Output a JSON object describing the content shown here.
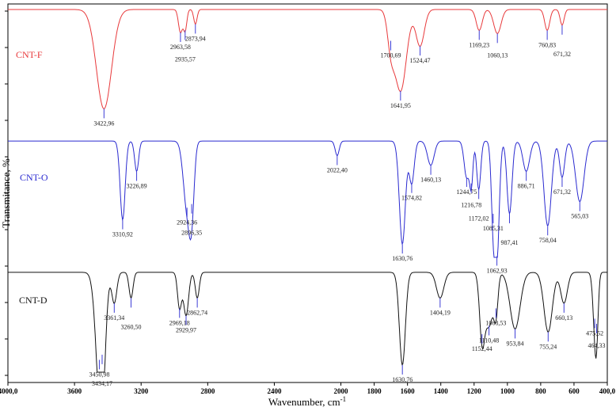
{
  "chart_data": {
    "type": "line",
    "xlabel": "Wavenumber, cm",
    "xlabel_sup": "-1",
    "ylabel": "Transmitance, %",
    "xlim": [
      4000,
      400
    ],
    "x_reversed": true,
    "x_ticks": [
      {
        "value": 4000,
        "label": "4000,0"
      },
      {
        "value": 3600,
        "label": "3600"
      },
      {
        "value": 3200,
        "label": "3200"
      },
      {
        "value": 2800,
        "label": "2800"
      },
      {
        "value": 2400,
        "label": "2400"
      },
      {
        "value": 2000,
        "label": "2000"
      },
      {
        "value": 1800,
        "label": "1800"
      },
      {
        "value": 1600,
        "label": "1600"
      },
      {
        "value": 1400,
        "label": "1400"
      },
      {
        "value": 1200,
        "label": "1200"
      },
      {
        "value": 1000,
        "label": "1000"
      },
      {
        "value": 800,
        "label": "800"
      },
      {
        "value": 600,
        "label": "600"
      },
      {
        "value": 400,
        "label": "400,0"
      }
    ],
    "grid": false,
    "legend": "none",
    "series": [
      {
        "name": "CNT-F",
        "color": "#e8393b",
        "baseline": 0.03,
        "range": [
          0,
          1
        ],
        "peaks": [
          {
            "x": 3422.96,
            "label": "3422,96",
            "depth": 0.95,
            "width": 45
          },
          {
            "x": 2963.58,
            "label": "2963,58",
            "depth": 0.22,
            "width": 12
          },
          {
            "x": 2935.57,
            "label": "2935,57",
            "depth": 0.2,
            "width": 10
          },
          {
            "x": 2873.94,
            "label": "2873,94",
            "depth": 0.14,
            "width": 10
          },
          {
            "x": 1700.69,
            "label": "1700,69",
            "depth": 0.3,
            "width": 20
          },
          {
            "x": 1641.95,
            "label": "1641,95",
            "depth": 0.78,
            "width": 35
          },
          {
            "x": 1524.47,
            "label": "1524,47",
            "depth": 0.35,
            "width": 25
          },
          {
            "x": 1169.23,
            "label": "1169,23",
            "depth": 0.2,
            "width": 18
          },
          {
            "x": 1060.13,
            "label": "1060,13",
            "depth": 0.23,
            "width": 22
          },
          {
            "x": 760.83,
            "label": "760,83",
            "depth": 0.2,
            "width": 15
          },
          {
            "x": 671.32,
            "label": "671,32",
            "depth": 0.15,
            "width": 12
          }
        ]
      },
      {
        "name": "CNT-O",
        "color": "#2a2ad0",
        "baseline": 0.04,
        "range": [
          0,
          1
        ],
        "peaks": [
          {
            "x": 3310.92,
            "label": "3310,92",
            "depth": 0.65,
            "width": 15
          },
          {
            "x": 3226.89,
            "label": "3226,89",
            "depth": 0.25,
            "width": 12
          },
          {
            "x": 2924.36,
            "label": "2924,36",
            "depth": 0.55,
            "width": 22
          },
          {
            "x": 2896.35,
            "label": "2896,35",
            "depth": 0.52,
            "width": 15
          },
          {
            "x": 2022.4,
            "label": "2022,40",
            "depth": 0.12,
            "width": 12
          },
          {
            "x": 1630.76,
            "label": "1630,76",
            "depth": 0.85,
            "width": 18
          },
          {
            "x": 1574.82,
            "label": "1574,82",
            "depth": 0.35,
            "width": 15
          },
          {
            "x": 1460.13,
            "label": "1460,13",
            "depth": 0.2,
            "width": 20
          },
          {
            "x": 1244.75,
            "label": "1244,75",
            "depth": 0.3,
            "width": 15
          },
          {
            "x": 1216.78,
            "label": "1216,78",
            "depth": 0.35,
            "width": 10
          },
          {
            "x": 1172.02,
            "label": "1172,02",
            "depth": 0.4,
            "width": 12
          },
          {
            "x": 1085.31,
            "label": "1085,31",
            "depth": 0.6,
            "width": 12
          },
          {
            "x": 1062.93,
            "label": "1062,93",
            "depth": 0.95,
            "width": 14
          },
          {
            "x": 987.41,
            "label": "987,41",
            "depth": 0.6,
            "width": 15
          },
          {
            "x": 886.71,
            "label": "886,71",
            "depth": 0.25,
            "width": 20
          },
          {
            "x": 758.04,
            "label": "758,04",
            "depth": 0.7,
            "width": 22
          },
          {
            "x": 671.32,
            "label": "671,32",
            "depth": 0.3,
            "width": 15
          },
          {
            "x": 565.03,
            "label": "565,03",
            "depth": 0.5,
            "width": 25
          }
        ]
      },
      {
        "name": "CNT-D",
        "color": "#111111",
        "baseline": 0.03,
        "range": [
          0,
          1
        ],
        "peaks": [
          {
            "x": 3450.98,
            "label": "3450,98",
            "depth": 0.85,
            "width": 25
          },
          {
            "x": 3434.17,
            "label": "3434,17",
            "depth": 0.8,
            "width": 20
          },
          {
            "x": 3361.34,
            "label": "3361,34",
            "depth": 0.3,
            "width": 15
          },
          {
            "x": 3260.5,
            "label": "3260,50",
            "depth": 0.25,
            "width": 12
          },
          {
            "x": 2969.18,
            "label": "2969,18",
            "depth": 0.35,
            "width": 12
          },
          {
            "x": 2929.97,
            "label": "2929,97",
            "depth": 0.42,
            "width": 15
          },
          {
            "x": 2862.74,
            "label": "2862,74",
            "depth": 0.25,
            "width": 12
          },
          {
            "x": 1630.76,
            "label": "1630,76",
            "depth": 0.9,
            "width": 18
          },
          {
            "x": 1404.19,
            "label": "1404,19",
            "depth": 0.25,
            "width": 22
          },
          {
            "x": 1152.44,
            "label": "1152,44",
            "depth": 0.6,
            "width": 15
          },
          {
            "x": 1110.48,
            "label": "1110,48",
            "depth": 0.52,
            "width": 25
          },
          {
            "x": 1068.53,
            "label": "1068,53",
            "depth": 0.35,
            "width": 12
          },
          {
            "x": 953.84,
            "label": "953,84",
            "depth": 0.55,
            "width": 30
          },
          {
            "x": 755.24,
            "label": "755,24",
            "depth": 0.58,
            "width": 25
          },
          {
            "x": 660.13,
            "label": "660,13",
            "depth": 0.3,
            "width": 20
          },
          {
            "x": 475.52,
            "label": "475,52",
            "depth": 0.45,
            "width": 12
          },
          {
            "x": 464.33,
            "label": "464,33",
            "depth": 0.5,
            "width": 10
          }
        ]
      }
    ]
  }
}
